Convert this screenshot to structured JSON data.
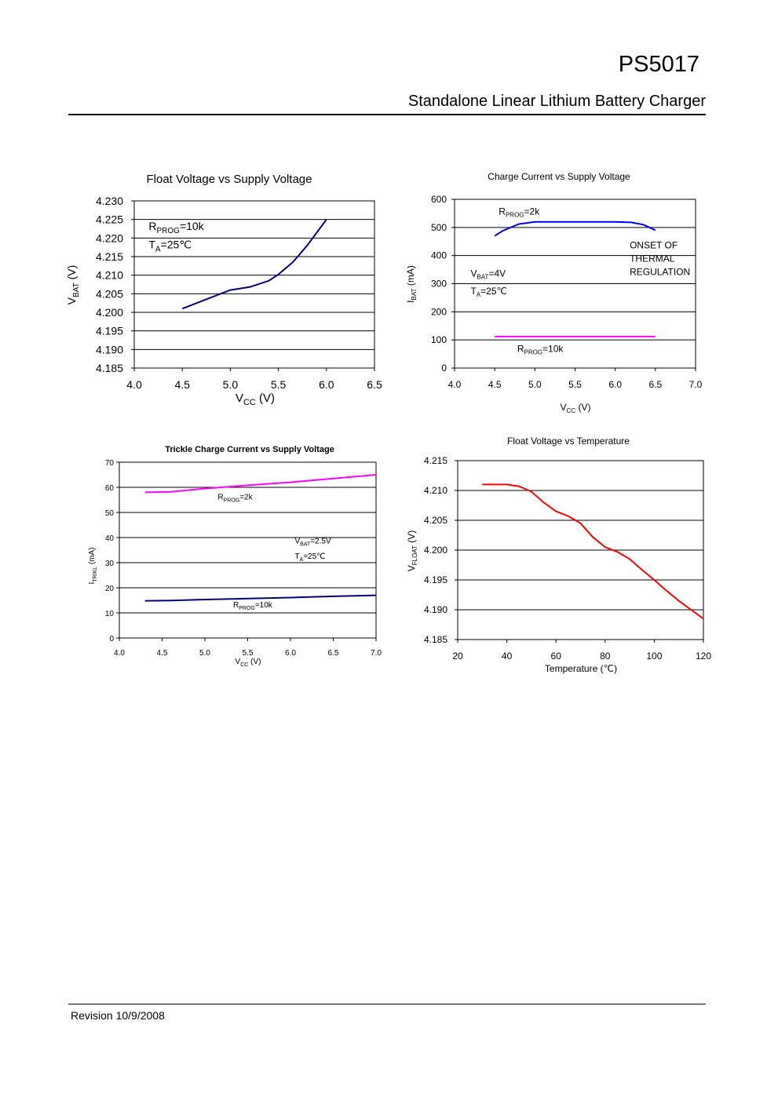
{
  "header": {
    "part_number": "PS5017",
    "subtitle": "Standalone Linear Lithium Battery Charger"
  },
  "footer": {
    "revision": "Revision 10/9/2008"
  },
  "chart_data": [
    {
      "id": "c1",
      "type": "line",
      "title": "Float Voltage vs Supply Voltage",
      "xlabel": "VCC (V)",
      "ylabel": "VBAT (V)",
      "xlim": [
        4.0,
        6.5
      ],
      "ylim": [
        4.185,
        4.23
      ],
      "xticks": [
        "4.0",
        "4.5",
        "5.0",
        "5.5",
        "6.0",
        "6.5"
      ],
      "yticks": [
        "4.185",
        "4.190",
        "4.195",
        "4.200",
        "4.205",
        "4.210",
        "4.215",
        "4.220",
        "4.225",
        "4.230"
      ],
      "grid": "horizontal",
      "series": [
        {
          "color": "#000080",
          "points": [
            [
              4.5,
              4.201
            ],
            [
              4.75,
              4.2035
            ],
            [
              5.0,
              4.206
            ],
            [
              5.2,
              4.2068
            ],
            [
              5.4,
              4.2085
            ],
            [
              5.5,
              4.2102
            ],
            [
              5.65,
              4.2135
            ],
            [
              5.8,
              4.218
            ],
            [
              6.0,
              4.225
            ]
          ]
        }
      ],
      "annotations": [
        {
          "text": "RPROG=10k",
          "x": 4.15,
          "y": 4.2222
        },
        {
          "text": "TA=25℃",
          "x": 4.15,
          "y": 4.2172
        }
      ]
    },
    {
      "id": "c2",
      "type": "line",
      "title": "Charge Current vs Supply Voltage",
      "xlabel": "VCC (V)",
      "ylabel": "IBAT (mA)",
      "xlim": [
        4.0,
        7.0
      ],
      "ylim": [
        0,
        600
      ],
      "xticks": [
        "4.0",
        "4.5",
        "5.0",
        "5.5",
        "6.0",
        "6.5",
        "7.0"
      ],
      "yticks": [
        "0",
        "100",
        "200",
        "300",
        "400",
        "500",
        "600"
      ],
      "grid": "horizontal",
      "series": [
        {
          "color": "#0000FF",
          "points": [
            [
              4.5,
              470
            ],
            [
              4.6,
              488
            ],
            [
              4.8,
              512
            ],
            [
              5.0,
              520
            ],
            [
              5.5,
              520
            ],
            [
              6.0,
              520
            ],
            [
              6.2,
              518
            ],
            [
              6.35,
              510
            ],
            [
              6.5,
              490
            ]
          ]
        },
        {
          "color": "#FF00FF",
          "points": [
            [
              4.5,
              112
            ],
            [
              6.5,
              112
            ]
          ]
        }
      ],
      "annotations": [
        {
          "text": "RPROG=2k",
          "x": 4.55,
          "y": 545
        },
        {
          "text": "ONSET OF",
          "x": 6.18,
          "y": 425
        },
        {
          "text": "THERMAL",
          "x": 6.18,
          "y": 378
        },
        {
          "text": "REGULATION",
          "x": 6.18,
          "y": 331
        },
        {
          "text": "VBAT=4V",
          "x": 4.2,
          "y": 325
        },
        {
          "text": "TA=25℃",
          "x": 4.2,
          "y": 262
        },
        {
          "text": "RPROG=10k",
          "x": 4.78,
          "y": 57
        }
      ]
    },
    {
      "id": "c3",
      "type": "line",
      "title": "Trickle Charge Current vs Supply Voltage",
      "xlabel": "VCC (V)",
      "ylabel": "ITRIKL (mA)",
      "xlim": [
        4.0,
        7.0
      ],
      "ylim": [
        0,
        70
      ],
      "xticks": [
        "4.0",
        "4.5",
        "5.0",
        "5.5",
        "6.0",
        "6.5",
        "7.0"
      ],
      "yticks": [
        "0",
        "10",
        "20",
        "30",
        "40",
        "50",
        "60",
        "70"
      ],
      "grid": "horizontal",
      "series": [
        {
          "color": "#FF00FF",
          "points": [
            [
              4.3,
              58
            ],
            [
              4.6,
              58.2
            ],
            [
              5.0,
              59.5
            ],
            [
              5.5,
              60.8
            ],
            [
              6.0,
              62
            ],
            [
              6.5,
              63.5
            ],
            [
              7.0,
              65
            ]
          ]
        },
        {
          "color": "#000080",
          "points": [
            [
              4.3,
              14.8
            ],
            [
              4.6,
              14.9
            ],
            [
              5.0,
              15.3
            ],
            [
              5.5,
              15.7
            ],
            [
              6.0,
              16.1
            ],
            [
              6.5,
              16.6
            ],
            [
              7.0,
              17
            ]
          ]
        }
      ],
      "annotations": [
        {
          "text": "RPROG=2k",
          "x": 5.15,
          "y": 55.2
        },
        {
          "text": "VBAT=2.5V",
          "x": 6.05,
          "y": 37.6
        },
        {
          "text": "TA=25℃",
          "x": 6.05,
          "y": 31.5
        },
        {
          "text": "RPROG=10k",
          "x": 5.33,
          "y": 12.2
        }
      ]
    },
    {
      "id": "c4",
      "type": "line",
      "title": "Float Voltage vs Temperature",
      "xlabel": "Temperature (℃)",
      "ylabel": "VFLOAT (V)",
      "xlim": [
        20,
        120
      ],
      "ylim": [
        4.185,
        4.215
      ],
      "xticks": [
        "20",
        "40",
        "60",
        "80",
        "100",
        "120"
      ],
      "yticks": [
        "4.185",
        "4.190",
        "4.195",
        "4.200",
        "4.205",
        "4.210",
        "4.215"
      ],
      "grid": "horizontal",
      "series": [
        {
          "color": "#FF0000",
          "points": [
            [
              30,
              4.211
            ],
            [
              40,
              4.211
            ],
            [
              45,
              4.2107
            ],
            [
              50,
              4.2098
            ],
            [
              55,
              4.208
            ],
            [
              60,
              4.2065
            ],
            [
              65,
              4.2057
            ],
            [
              70,
              4.2045
            ],
            [
              75,
              4.2022
            ],
            [
              80,
              4.2005
            ],
            [
              85,
              4.1997
            ],
            [
              90,
              4.1985
            ],
            [
              95,
              4.1967
            ],
            [
              100,
              4.195
            ],
            [
              105,
              4.1932
            ],
            [
              110,
              4.1915
            ],
            [
              115,
              4.19
            ],
            [
              120,
              4.1885
            ]
          ]
        }
      ]
    }
  ]
}
